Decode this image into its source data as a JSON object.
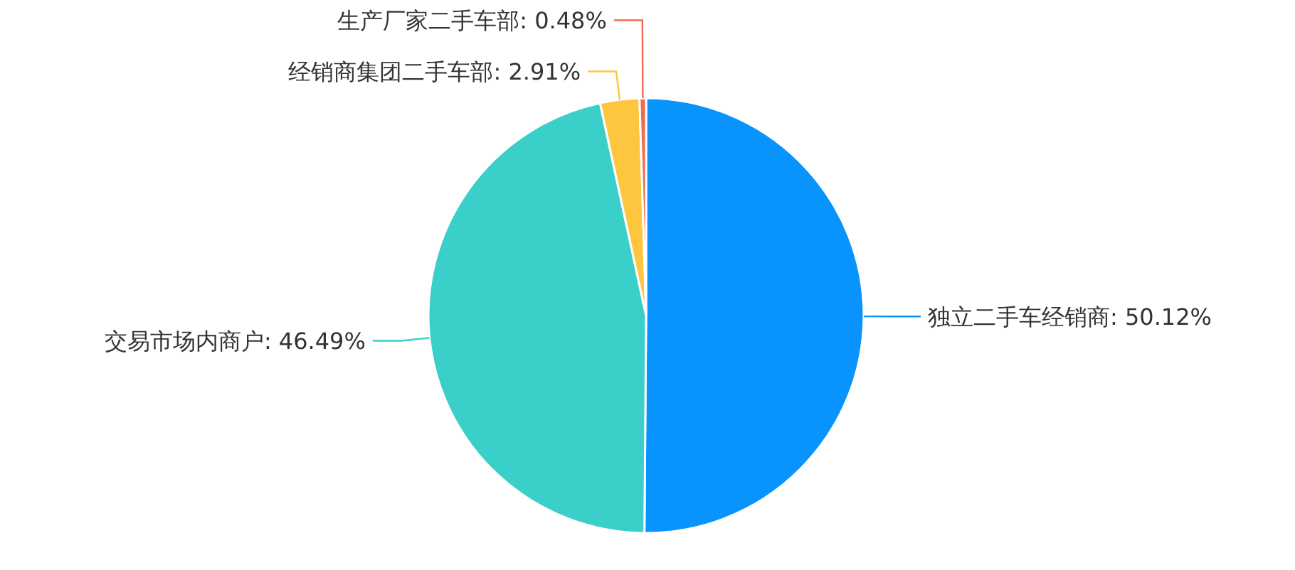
{
  "chart_data": {
    "type": "pie",
    "categories": [
      "独立二手车经销商",
      "交易市场内商户",
      "经销商集团二手车部",
      "生产厂家二手车部"
    ],
    "values": [
      50.12,
      46.49,
      2.91,
      0.48
    ],
    "value_labels": [
      "50.12%",
      "46.49%",
      "2.91%",
      "0.48%"
    ],
    "colors": [
      "#0994fd",
      "#3acfc9",
      "#fec53f",
      "#f26b4f"
    ]
  }
}
